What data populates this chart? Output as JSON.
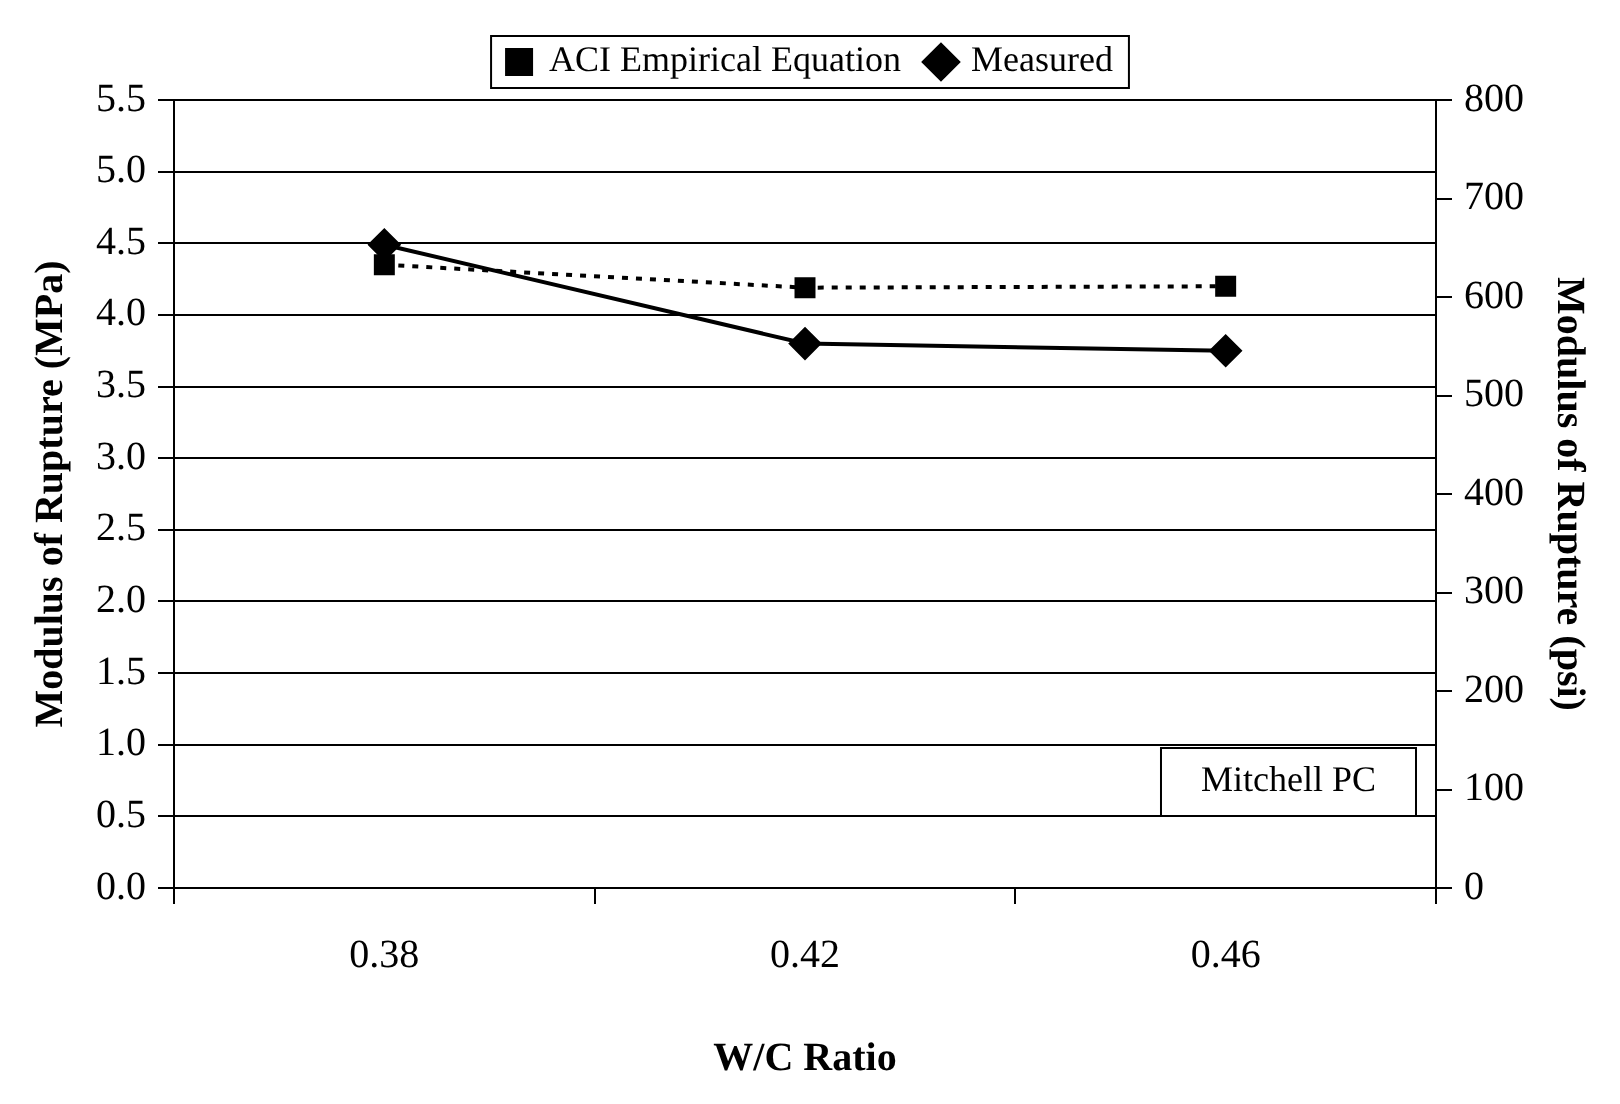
{
  "chart_data": {
    "type": "line",
    "xlabel": "W/C Ratio",
    "ylabel": "Modulus of Rupture (MPa)",
    "y2label": "Modulus of Rupture (psi)",
    "categories": [
      "0.38",
      "0.42",
      "0.46"
    ],
    "series": [
      {
        "name": "ACI Empirical Equation",
        "color": "#000000",
        "values": [
          4.35,
          4.19,
          4.2
        ],
        "marker": "square",
        "line_style": "dotted"
      },
      {
        "name": "Measured",
        "color": "#000000",
        "values": [
          4.49,
          3.8,
          3.75
        ],
        "marker": "diamond",
        "line_style": "solid"
      }
    ],
    "ylim": [
      0,
      5.5
    ],
    "yticks": [
      {
        "value": 0,
        "label": "0.0"
      },
      {
        "value": 0.5,
        "label": "0.5"
      },
      {
        "value": 1,
        "label": "1.0"
      },
      {
        "value": 1.5,
        "label": "1.5"
      },
      {
        "value": 2,
        "label": "2.0"
      },
      {
        "value": 2.5,
        "label": "2.5"
      },
      {
        "value": 3,
        "label": "3.0"
      },
      {
        "value": 3.5,
        "label": "3.5"
      },
      {
        "value": 4,
        "label": "4.0"
      },
      {
        "value": 4.5,
        "label": "4.5"
      },
      {
        "value": 5,
        "label": "5.0"
      },
      {
        "value": 5.5,
        "label": "5.5"
      }
    ],
    "y2lim": [
      0,
      800
    ],
    "y2ticks": [
      0,
      100,
      200,
      300,
      400,
      500,
      600,
      700,
      800
    ],
    "grid": "y",
    "legend": "top",
    "annotations": [
      "Mitchell PC"
    ]
  }
}
